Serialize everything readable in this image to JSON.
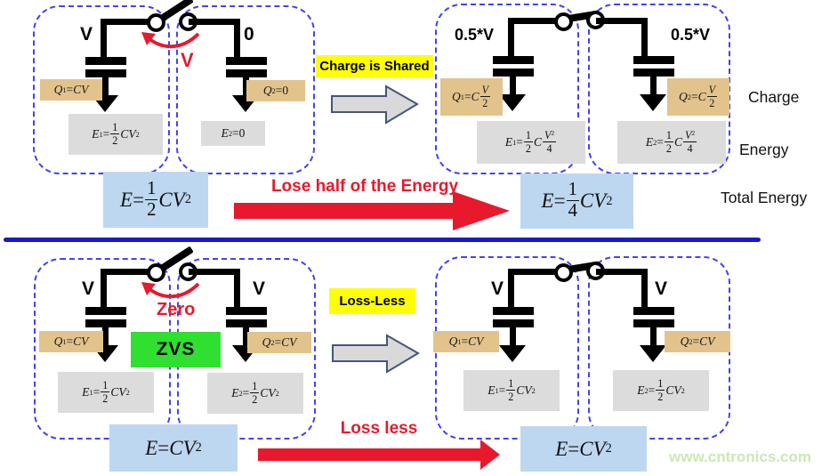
{
  "colors": {
    "accent_red": "#e8192c",
    "panel_border_blue": "#4343f0",
    "divider_blue": "#1818cd",
    "highlight_yellow": "#ffff00",
    "zvs_green": "#30e030",
    "charge_box_tan": "#e3c38c",
    "energy_box_gray": "#dcdcdc",
    "total_box_blue": "#bdd7f0",
    "gray_arrow_fill": "#d9d9d9",
    "watermark_green": "#cce8b5"
  },
  "sections": {
    "top": {
      "before": {
        "cap1": {
          "voltage": "V",
          "charge": "Q_1 = CV",
          "energy": "E_1 = {1|2}CV^2"
        },
        "cap2": {
          "voltage": "0",
          "charge": "Q_2 = 0",
          "energy": "E_2 = 0"
        },
        "switch_annotation": "V"
      },
      "process_label": "Charge is Shared",
      "after": {
        "cap1": {
          "voltage": "0.5*V",
          "charge": "Q_1 = C{V|2}",
          "energy": "E_1 = {1|2}C{V^2|4}"
        },
        "cap2": {
          "voltage": "0.5*V",
          "charge": "Q_2 = C{V|2}",
          "energy": "E_2 = {1|2}C{V^2|4}"
        }
      },
      "total_before": "E = {1|2}CV^2",
      "result_label": "Lose half of the Energy",
      "total_after": "E = {1|4}CV^2"
    },
    "bottom": {
      "before": {
        "cap1": {
          "voltage": "V",
          "charge": "Q_1 = CV",
          "energy": "E_1 = {1|2}CV^2"
        },
        "cap2": {
          "voltage": "V",
          "charge": "Q_2 = CV",
          "energy": "E_2 = {1|2}CV^2"
        },
        "switch_annotation": "Zero",
        "zvs_label": "ZVS"
      },
      "process_label": "Loss-Less",
      "after": {
        "cap1": {
          "voltage": "V",
          "charge": "Q_1 = CV",
          "energy": "E_1 = {1|2}CV^2"
        },
        "cap2": {
          "voltage": "V",
          "charge": "Q_2 = CV",
          "energy": "E_2 = {1|2}CV^2"
        }
      },
      "total_before": "E = CV^2",
      "result_label": "Loss less",
      "total_after": "E = CV^2"
    }
  },
  "row_labels": {
    "charge": "Charge",
    "energy": "Energy",
    "total": "Total Energy"
  },
  "watermark": "www.cntronics.com"
}
